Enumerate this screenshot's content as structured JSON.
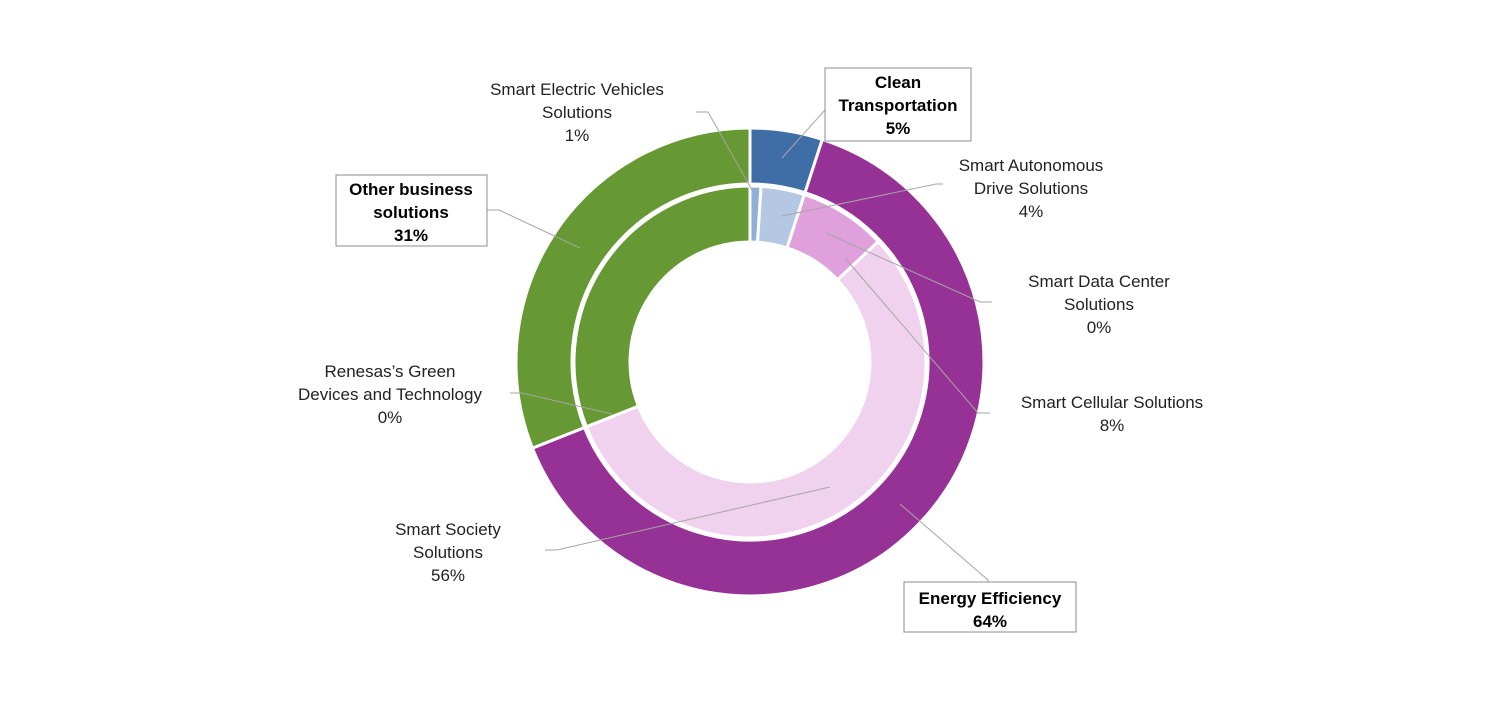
{
  "chart_data": {
    "type": "pie",
    "subtype": "double-donut",
    "title": "",
    "outer_ring": [
      {
        "name": "Clean Transportation",
        "value": 5,
        "label": "5%",
        "color": "#3F6EA6"
      },
      {
        "name": "Energy Efficiency",
        "value": 64,
        "label": "64%",
        "color": "#963296"
      },
      {
        "name": "Other business solutions",
        "value": 31,
        "label": "31%",
        "color": "#669933"
      }
    ],
    "inner_ring": [
      {
        "name": "Smart Electric Vehicles Solutions",
        "value": 1,
        "label": "1%",
        "color": "#8FAFD6"
      },
      {
        "name": "Smart Autonomous Drive Solutions",
        "value": 4,
        "label": "4%",
        "color": "#B4C8E4"
      },
      {
        "name": "Smart Data Center Solutions",
        "value": 0,
        "label": "0%",
        "color": "#E0A0DC"
      },
      {
        "name": "Smart Cellular Solutions",
        "value": 8,
        "label": "8%",
        "color": "#E0A0DC"
      },
      {
        "name": "Smart Society Solutions",
        "value": 56,
        "label": "56%",
        "color": "#F0D2EE"
      },
      {
        "name": "Renesas’s Green Devices and Technology",
        "value": 0,
        "label": "0%",
        "color": "#669933"
      },
      {
        "name": "Other business solutions",
        "value": 31,
        "label": "",
        "color": "#669933"
      }
    ]
  },
  "labels": {
    "sev": {
      "line1": "Smart Electric Vehicles",
      "line2": "Solutions",
      "pct": "1%"
    },
    "clean": {
      "line1": "Clean",
      "line2": "Transportation",
      "pct": "5%"
    },
    "sad": {
      "line1": "Smart Autonomous",
      "line2": "Drive Solutions",
      "pct": "4%"
    },
    "sdc": {
      "line1": "Smart Data Center",
      "line2": "Solutions",
      "pct": "0%"
    },
    "scell": {
      "line1": "Smart Cellular Solutions",
      "pct": "8%"
    },
    "other": {
      "line1": "Other business",
      "line2": "solutions",
      "pct": "31%"
    },
    "green": {
      "line1": "Renesas’s Green",
      "line2": "Devices and Technology",
      "pct": "0%"
    },
    "society": {
      "line1": "Smart Society",
      "line2": "Solutions",
      "pct": "56%"
    },
    "energy": {
      "line1": "Energy Efficiency",
      "pct": "64%"
    }
  }
}
